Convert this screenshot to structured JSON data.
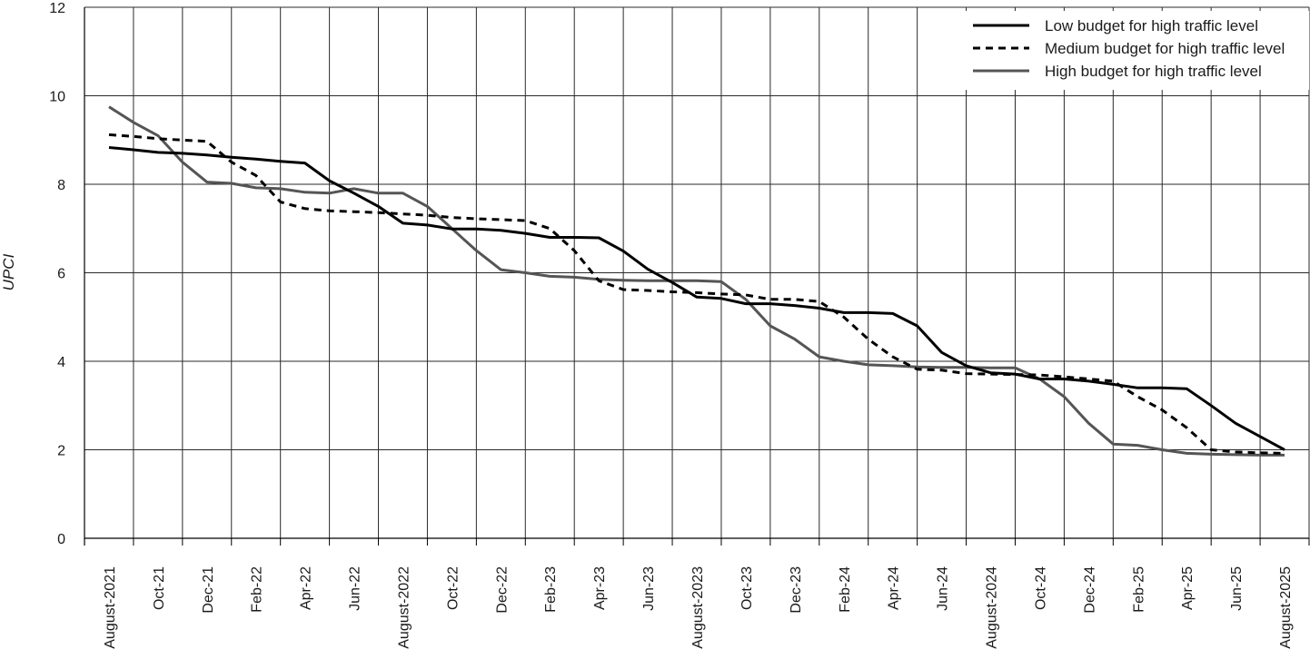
{
  "chart_data": {
    "type": "line",
    "ylabel": "UPCI",
    "xlabel": "",
    "ylim": [
      0,
      12
    ],
    "y_ticks": [
      0,
      2,
      4,
      6,
      8,
      10,
      12
    ],
    "grid": true,
    "legend_position": "top-right",
    "x_tick_labels": [
      "August-2021",
      "Oct-21",
      "Dec-21",
      "Feb-22",
      "Apr-22",
      "Jun-22",
      "August-2022",
      "Oct-22",
      "Dec-22",
      "Feb-23",
      "Apr-23",
      "Jun-23",
      "August-2023",
      "Oct-23",
      "Dec-23",
      "Feb-24",
      "Apr-24",
      "Jun-24",
      "August-2024",
      "Oct-24",
      "Dec-24",
      "Feb-25",
      "Apr-25",
      "Jun-25",
      "August-2025"
    ],
    "series": [
      {
        "name": "Low budget for high traffic level",
        "style": "solid",
        "color": "#000000",
        "values": [
          8.83,
          8.78,
          8.72,
          8.7,
          8.66,
          8.61,
          8.57,
          8.52,
          8.48,
          8.08,
          7.8,
          7.5,
          7.12,
          7.08,
          6.99,
          6.99,
          6.96,
          6.89,
          6.8,
          6.8,
          6.79,
          6.49,
          6.08,
          5.78,
          5.45,
          5.42,
          5.3,
          5.3,
          5.26,
          5.2,
          5.1,
          5.1,
          5.08,
          4.8,
          4.2,
          3.9,
          3.74,
          3.71,
          3.6,
          3.6,
          3.55,
          3.48,
          3.4,
          3.4,
          3.38,
          3.0,
          2.6,
          2.3,
          2.0
        ]
      },
      {
        "name": "Medium budget for high traffic level",
        "style": "dashed",
        "color": "#000000",
        "values": [
          9.12,
          9.08,
          9.03,
          9.0,
          8.97,
          8.5,
          8.2,
          7.6,
          7.45,
          7.4,
          7.38,
          7.36,
          7.33,
          7.3,
          7.25,
          7.22,
          7.2,
          7.18,
          7.0,
          6.5,
          5.82,
          5.62,
          5.6,
          5.57,
          5.55,
          5.52,
          5.5,
          5.4,
          5.4,
          5.35,
          5.0,
          4.5,
          4.1,
          3.82,
          3.8,
          3.72,
          3.71,
          3.7,
          3.69,
          3.65,
          3.6,
          3.55,
          3.2,
          2.9,
          2.5,
          2.0,
          1.95,
          1.93,
          1.92
        ]
      },
      {
        "name": "High budget for high traffic level",
        "style": "solid",
        "color": "#555555",
        "values": [
          9.75,
          9.4,
          9.1,
          8.5,
          8.05,
          8.02,
          7.92,
          7.9,
          7.82,
          7.8,
          7.9,
          7.8,
          7.8,
          7.5,
          7.0,
          6.5,
          6.07,
          6.0,
          5.92,
          5.9,
          5.85,
          5.83,
          5.82,
          5.82,
          5.82,
          5.8,
          5.4,
          4.8,
          4.5,
          4.1,
          4.0,
          3.92,
          3.9,
          3.87,
          3.86,
          3.86,
          3.85,
          3.85,
          3.6,
          3.2,
          2.6,
          2.13,
          2.1,
          2.0,
          1.92,
          1.9,
          1.89,
          1.88,
          1.88
        ]
      }
    ]
  }
}
